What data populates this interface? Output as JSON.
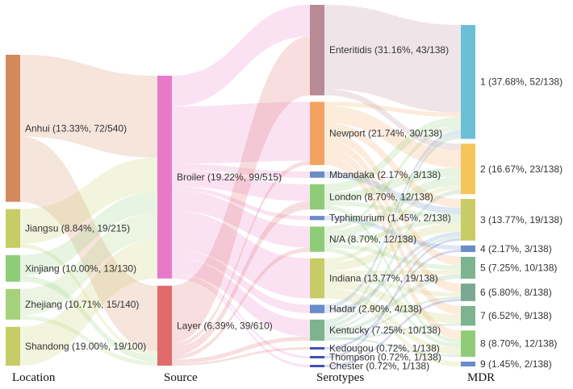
{
  "chart_data": {
    "type": "sankey",
    "columns": [
      {
        "key": "location",
        "label": "Location"
      },
      {
        "key": "source",
        "label": "Source"
      },
      {
        "key": "serotype",
        "label": "Serotypes"
      },
      {
        "key": "mdr",
        "label": "MDR"
      }
    ],
    "nodes": [
      {
        "id": "anhui",
        "column": "location",
        "label": "Anhui (13.33%, 72/540)",
        "value": 72,
        "color": "#d4895a"
      },
      {
        "id": "jiangsu",
        "column": "location",
        "label": "Jiangsu (8.84%, 19/215)",
        "value": 19,
        "color": "#c7cc66"
      },
      {
        "id": "xinjiang",
        "column": "location",
        "label": "Xinjiang (10.00%, 13/130)",
        "value": 13,
        "color": "#8fcc78"
      },
      {
        "id": "zhejiang",
        "column": "location",
        "label": "Zhejiang (10.71%, 15/140)",
        "value": 15,
        "color": "#a5d27a"
      },
      {
        "id": "shandong",
        "column": "location",
        "label": "Shandong (19.00%, 19/100)",
        "value": 19,
        "color": "#c7cc66"
      },
      {
        "id": "broiler",
        "column": "source",
        "label": "Broiler (19.22%, 99/515)",
        "value": 99,
        "color": "#e879c9"
      },
      {
        "id": "layer",
        "column": "source",
        "label": "Layer (6.39%, 39/610)",
        "value": 39,
        "color": "#e06b6b"
      },
      {
        "id": "enteritidis",
        "column": "serotype",
        "label": "Enteritidis (31.16%, 43/138)",
        "value": 43,
        "color": "#b88a96"
      },
      {
        "id": "newport",
        "column": "serotype",
        "label": "Newport (21.74%, 30/138)",
        "value": 30,
        "color": "#f4a261"
      },
      {
        "id": "mbandaka",
        "column": "serotype",
        "label": "Mbandaka (2.17%, 3/138)",
        "value": 3,
        "color": "#6a8cc8"
      },
      {
        "id": "london",
        "column": "serotype",
        "label": "London (8.70%, 12/138)",
        "value": 12,
        "color": "#8fcc78"
      },
      {
        "id": "typhimurium",
        "column": "serotype",
        "label": "Typhimurium (1.45%, 2/138)",
        "value": 2,
        "color": "#6a8cc8"
      },
      {
        "id": "na",
        "column": "serotype",
        "label": "N/A (8.70%, 12/138)",
        "value": 12,
        "color": "#8fcc78"
      },
      {
        "id": "indiana",
        "column": "serotype",
        "label": "Indiana (13.77%, 19/138)",
        "value": 19,
        "color": "#c7cc66"
      },
      {
        "id": "hadar",
        "column": "serotype",
        "label": "Hadar (2.90%, 4/138)",
        "value": 4,
        "color": "#6a8cc8"
      },
      {
        "id": "kentucky",
        "column": "serotype",
        "label": "Kentucky (7.25%, 10/138)",
        "value": 10,
        "color": "#7cb48f"
      },
      {
        "id": "kedougou",
        "column": "serotype",
        "label": "Kedougou (0.72%, 1/138)",
        "value": 1,
        "color": "#3f51b5"
      },
      {
        "id": "thompson",
        "column": "serotype",
        "label": "Thompson (0.72%, 1/138)",
        "value": 1,
        "color": "#3f51b5"
      },
      {
        "id": "chester",
        "column": "serotype",
        "label": "Chester (0.72%, 1/138)",
        "value": 1,
        "color": "#3f51b5"
      },
      {
        "id": "mdr1",
        "column": "mdr",
        "label": "1 (37.68%, 52/138)",
        "value": 52,
        "color": "#6cc0d6"
      },
      {
        "id": "mdr2",
        "column": "mdr",
        "label": "2 (16.67%, 23/138)",
        "value": 23,
        "color": "#f6c55a"
      },
      {
        "id": "mdr3",
        "column": "mdr",
        "label": "3 (13.77%, 19/138)",
        "value": 19,
        "color": "#c7cc66"
      },
      {
        "id": "mdr4",
        "column": "mdr",
        "label": "4 (2.17%, 3/138)",
        "value": 3,
        "color": "#6a8cc8"
      },
      {
        "id": "mdr5",
        "column": "mdr",
        "label": "5 (7.25%, 10/138)",
        "value": 10,
        "color": "#7cb48f"
      },
      {
        "id": "mdr6",
        "column": "mdr",
        "label": "6 (5.80%, 8/138)",
        "value": 8,
        "color": "#7aa894"
      },
      {
        "id": "mdr7",
        "column": "mdr",
        "label": "7 (6.52%, 9/138)",
        "value": 9,
        "color": "#7cb48f"
      },
      {
        "id": "mdr8",
        "column": "mdr",
        "label": "8 (8.70%, 12/138)",
        "value": 12,
        "color": "#8fcc78"
      },
      {
        "id": "mdr9",
        "column": "mdr",
        "label": "9 (1.45%, 2/138)",
        "value": 2,
        "color": "#6a8cc8"
      }
    ],
    "links": [
      {
        "source": "anhui",
        "target": "broiler",
        "value": 40
      },
      {
        "source": "anhui",
        "target": "layer",
        "value": 32
      },
      {
        "source": "jiangsu",
        "target": "broiler",
        "value": 17
      },
      {
        "source": "jiangsu",
        "target": "layer",
        "value": 2
      },
      {
        "source": "xinjiang",
        "target": "broiler",
        "value": 10
      },
      {
        "source": "xinjiang",
        "target": "layer",
        "value": 3
      },
      {
        "source": "zhejiang",
        "target": "broiler",
        "value": 13
      },
      {
        "source": "zhejiang",
        "target": "layer",
        "value": 2
      },
      {
        "source": "shandong",
        "target": "broiler",
        "value": 19
      },
      {
        "source": "broiler",
        "target": "enteritidis",
        "value": 15
      },
      {
        "source": "broiler",
        "target": "newport",
        "value": 28
      },
      {
        "source": "broiler",
        "target": "mbandaka",
        "value": 3
      },
      {
        "source": "broiler",
        "target": "london",
        "value": 8
      },
      {
        "source": "broiler",
        "target": "typhimurium",
        "value": 2
      },
      {
        "source": "broiler",
        "target": "na",
        "value": 10
      },
      {
        "source": "broiler",
        "target": "indiana",
        "value": 19
      },
      {
        "source": "broiler",
        "target": "hadar",
        "value": 4
      },
      {
        "source": "broiler",
        "target": "kentucky",
        "value": 8
      },
      {
        "source": "broiler",
        "target": "thompson",
        "value": 1
      },
      {
        "source": "broiler",
        "target": "chester",
        "value": 1
      },
      {
        "source": "layer",
        "target": "enteritidis",
        "value": 28
      },
      {
        "source": "layer",
        "target": "newport",
        "value": 2
      },
      {
        "source": "layer",
        "target": "london",
        "value": 4
      },
      {
        "source": "layer",
        "target": "na",
        "value": 2
      },
      {
        "source": "layer",
        "target": "kentucky",
        "value": 2
      },
      {
        "source": "layer",
        "target": "kedougou",
        "value": 1
      },
      {
        "source": "enteritidis",
        "target": "mdr1",
        "value": 40
      },
      {
        "source": "enteritidis",
        "target": "mdr2",
        "value": 3
      },
      {
        "source": "newport",
        "target": "mdr1",
        "value": 2
      },
      {
        "source": "newport",
        "target": "mdr2",
        "value": 8
      },
      {
        "source": "newport",
        "target": "mdr3",
        "value": 4
      },
      {
        "source": "newport",
        "target": "mdr5",
        "value": 4
      },
      {
        "source": "newport",
        "target": "mdr6",
        "value": 4
      },
      {
        "source": "newport",
        "target": "mdr7",
        "value": 4
      },
      {
        "source": "newport",
        "target": "mdr8",
        "value": 4
      },
      {
        "source": "mbandaka",
        "target": "mdr3",
        "value": 3
      },
      {
        "source": "london",
        "target": "mdr1",
        "value": 4
      },
      {
        "source": "london",
        "target": "mdr2",
        "value": 4
      },
      {
        "source": "london",
        "target": "mdr3",
        "value": 2
      },
      {
        "source": "london",
        "target": "mdr8",
        "value": 2
      },
      {
        "source": "typhimurium",
        "target": "mdr4",
        "value": 2
      },
      {
        "source": "na",
        "target": "mdr1",
        "value": 2
      },
      {
        "source": "na",
        "target": "mdr2",
        "value": 4
      },
      {
        "source": "na",
        "target": "mdr3",
        "value": 2
      },
      {
        "source": "na",
        "target": "mdr5",
        "value": 2
      },
      {
        "source": "na",
        "target": "mdr8",
        "value": 2
      },
      {
        "source": "indiana",
        "target": "mdr2",
        "value": 2
      },
      {
        "source": "indiana",
        "target": "mdr3",
        "value": 4
      },
      {
        "source": "indiana",
        "target": "mdr5",
        "value": 2
      },
      {
        "source": "indiana",
        "target": "mdr6",
        "value": 2
      },
      {
        "source": "indiana",
        "target": "mdr7",
        "value": 4
      },
      {
        "source": "indiana",
        "target": "mdr8",
        "value": 3
      },
      {
        "source": "indiana",
        "target": "mdr9",
        "value": 2
      },
      {
        "source": "hadar",
        "target": "mdr1",
        "value": 2
      },
      {
        "source": "hadar",
        "target": "mdr3",
        "value": 2
      },
      {
        "source": "kentucky",
        "target": "mdr1",
        "value": 2
      },
      {
        "source": "kentucky",
        "target": "mdr2",
        "value": 2
      },
      {
        "source": "kentucky",
        "target": "mdr3",
        "value": 1
      },
      {
        "source": "kentucky",
        "target": "mdr5",
        "value": 2
      },
      {
        "source": "kentucky",
        "target": "mdr6",
        "value": 1
      },
      {
        "source": "kentucky",
        "target": "mdr8",
        "value": 1
      },
      {
        "source": "kentucky",
        "target": "mdr7",
        "value": 1
      },
      {
        "source": "kedougou",
        "target": "mdr4",
        "value": 1
      },
      {
        "source": "thompson",
        "target": "mdr3",
        "value": 1
      },
      {
        "source": "chester",
        "target": "mdr6",
        "value": 1
      }
    ]
  }
}
